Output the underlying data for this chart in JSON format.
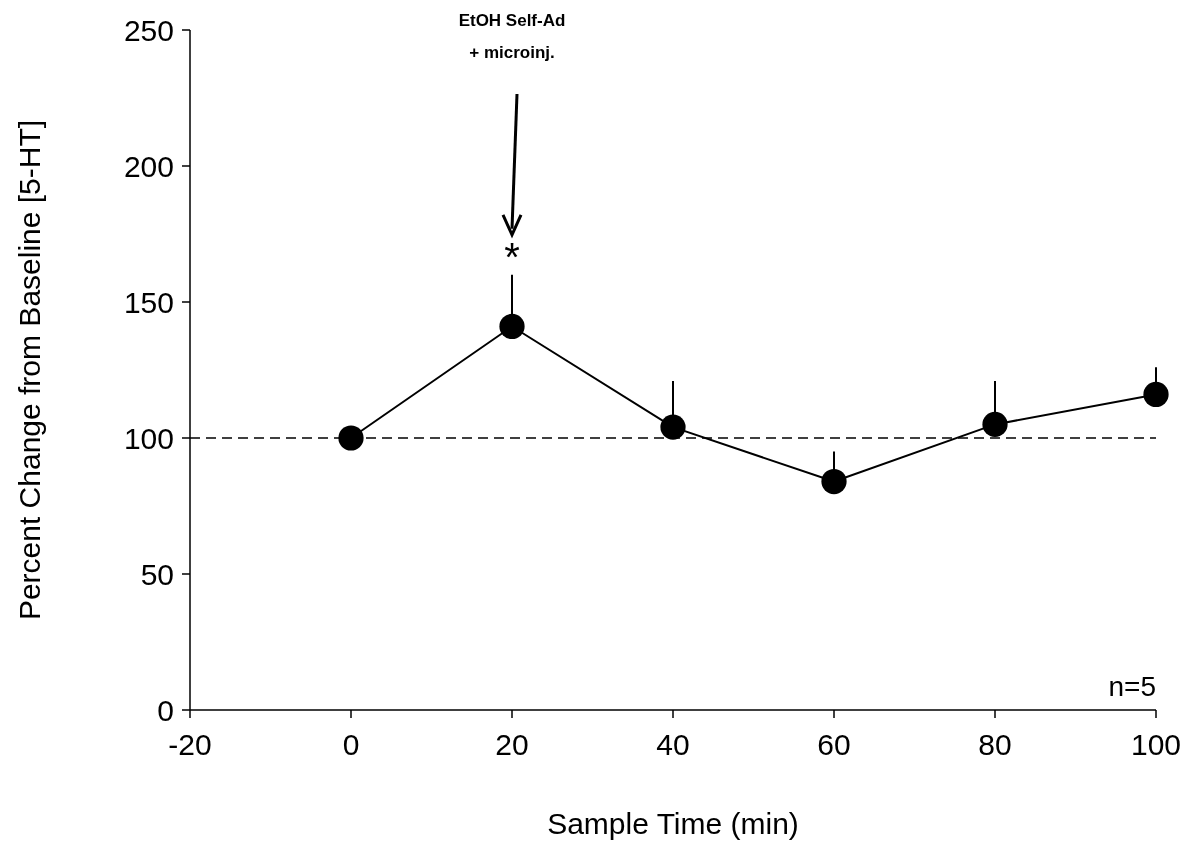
{
  "chart_data": {
    "type": "line",
    "xlabel": "Sample Time (min)",
    "ylabel": "Percent Change from Baseline [5-HT]",
    "x": [
      0,
      20,
      40,
      60,
      80,
      100
    ],
    "series": [
      {
        "color": "#000000",
        "values": [
          100,
          141,
          104,
          84,
          105,
          116
        ],
        "errors": [
          null,
          [
            141,
            160
          ],
          [
            104,
            121
          ],
          [
            84,
            95
          ],
          [
            105,
            121
          ],
          [
            116,
            126
          ]
        ]
      }
    ],
    "xlim": [
      -20,
      100
    ],
    "xticks": [
      -20,
      0,
      20,
      40,
      60,
      80,
      100
    ],
    "ylim": [
      0,
      250
    ],
    "yticks": [
      0,
      50,
      100,
      150,
      200,
      250
    ],
    "ref_lines": [
      {
        "axis": "y",
        "value": 100,
        "color": "#000000",
        "line_style": "dashed"
      }
    ],
    "annotations": [
      "EtOH Self-Ad\n+ microinj.",
      "*",
      "n=5"
    ],
    "marker": "circle",
    "line_style": "solid",
    "grid": false
  }
}
